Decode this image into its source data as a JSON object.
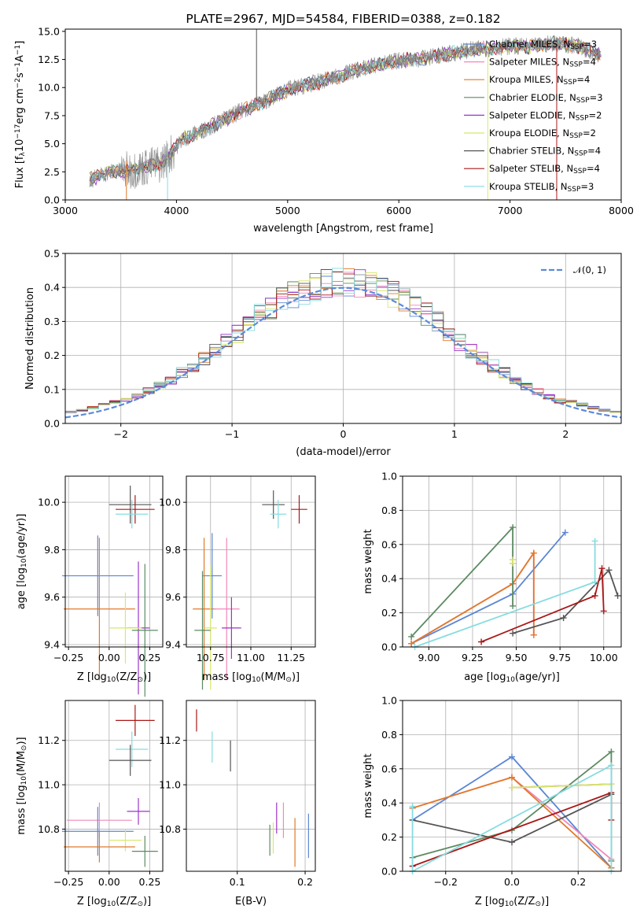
{
  "colors": {
    "chab_miles": "#5b86d4",
    "salp_miles": "#f088b8",
    "krou_miles": "#e07a2a",
    "chab_elodie": "#5c8a62",
    "salp_elodie": "#9b35c9",
    "krou_elodie": "#d8e86a",
    "chab_stelib": "#555555",
    "salp_stelib": "#aa1818",
    "krou_stelib": "#86dce0",
    "data": "#888888",
    "gauss": "#5b8ad8"
  },
  "legend": [
    {
      "key": "chab_miles",
      "label": "Chabrier MILES, N",
      "sub": "SSP",
      "eq": "=3"
    },
    {
      "key": "salp_miles",
      "label": "Salpeter MILES, N",
      "sub": "SSP",
      "eq": "=4"
    },
    {
      "key": "krou_miles",
      "label": "Kroupa MILES, N",
      "sub": "SSP",
      "eq": "=4"
    },
    {
      "key": "chab_elodie",
      "label": "Chabrier ELODIE, N",
      "sub": "SSP",
      "eq": "=3"
    },
    {
      "key": "salp_elodie",
      "label": "Salpeter ELODIE, N",
      "sub": "SSP",
      "eq": "=2"
    },
    {
      "key": "krou_elodie",
      "label": "Kroupa ELODIE, N",
      "sub": "SSP",
      "eq": "=2"
    },
    {
      "key": "chab_stelib",
      "label": "Chabrier STELIB, N",
      "sub": "SSP",
      "eq": "=4"
    },
    {
      "key": "salp_stelib",
      "label": "Salpeter STELIB, N",
      "sub": "SSP",
      "eq": "=4"
    },
    {
      "key": "krou_stelib",
      "label": "Kroupa STELIB, N",
      "sub": "SSP",
      "eq": "=3"
    }
  ],
  "chart_data": [
    {
      "type": "line",
      "title": "PLATE=2967, MJD=54584, FIBERID=0388, z=0.182",
      "xlabel": "wavelength [Angstrom, rest frame]",
      "ylabel_parts": [
        "Flux [f",
        "λ",
        "10",
        "−17",
        "erg cm",
        "−2",
        "s",
        "−1",
        "A",
        "−1",
        "]"
      ],
      "xlim": [
        3000,
        8000
      ],
      "ylim": [
        0,
        15.2
      ],
      "xticks": [
        3000,
        4000,
        5000,
        6000,
        7000,
        8000
      ],
      "yticks": [
        0.0,
        2.5,
        5.0,
        7.5,
        10.0,
        12.5,
        15.0
      ],
      "continuum": [
        [
          3220,
          1.8
        ],
        [
          3400,
          2.5
        ],
        [
          3560,
          2.6
        ],
        [
          3700,
          2.9
        ],
        [
          3850,
          3.2
        ],
        [
          3950,
          4.1
        ],
        [
          4050,
          5.4
        ],
        [
          4200,
          6.0
        ],
        [
          4400,
          7.0
        ],
        [
          4600,
          8.0
        ],
        [
          4800,
          8.8
        ],
        [
          5000,
          9.8
        ],
        [
          5200,
          10.3
        ],
        [
          5400,
          10.8
        ],
        [
          5600,
          11.5
        ],
        [
          5800,
          12.0
        ],
        [
          6000,
          12.4
        ],
        [
          6200,
          12.6
        ],
        [
          6400,
          12.9
        ],
        [
          6600,
          13.3
        ],
        [
          6800,
          13.5
        ],
        [
          7000,
          13.7
        ],
        [
          7200,
          13.6
        ],
        [
          7400,
          14.0
        ],
        [
          7600,
          13.7
        ],
        [
          7800,
          13.0
        ]
      ]
    },
    {
      "type": "bar",
      "xlabel": "(data-model)/error",
      "ylabel": "Normed distribution",
      "xlim": [
        -2.5,
        2.5
      ],
      "ylim": [
        0,
        0.5
      ],
      "xticks": [
        -2,
        -1,
        0,
        1,
        2
      ],
      "yticks": [
        0.0,
        0.1,
        0.2,
        0.3,
        0.4,
        0.5
      ],
      "gauss_label": "𝒩(0, 1)",
      "bin_width": 0.1
    },
    {
      "type": "scatter",
      "xlabel_parts": [
        "Z [log",
        "10",
        "(Z/Z",
        "⊙",
        ")]"
      ],
      "ylabel_parts": [
        "age  [log",
        "10",
        "(age/yr)]"
      ],
      "xlim": [
        -0.27,
        0.33
      ],
      "ylim": [
        9.39,
        10.11
      ],
      "xticks": [
        -0.25,
        0.0,
        0.25
      ],
      "xtick_labels": [
        "−0.25",
        "0.00",
        "0.25"
      ],
      "yticks": [
        9.4,
        9.6,
        9.8,
        10.0
      ],
      "points": [
        {
          "c": "chab_stelib",
          "x": 0.13,
          "y": 9.99,
          "ex": 0.13,
          "ey": 0.08
        },
        {
          "c": "salp_stelib",
          "x": 0.16,
          "y": 9.97,
          "ex": 0.12,
          "ey": 0.06
        },
        {
          "c": "krou_stelib",
          "x": 0.14,
          "y": 9.95,
          "ex": 0.1,
          "ey": 0.06
        },
        {
          "c": "chab_miles",
          "x": -0.07,
          "y": 9.69,
          "ex": 0.22,
          "ey": 0.17
        },
        {
          "c": "krou_miles",
          "x": -0.06,
          "y": 9.55,
          "ex": 0.22,
          "ey": 0.3
        },
        {
          "c": "salp_elodie",
          "x": 0.18,
          "y": 9.47,
          "ex": 0.07,
          "ey": 0.28
        },
        {
          "c": "krou_elodie",
          "x": 0.1,
          "y": 9.47,
          "ex": 0.1,
          "ey": 0.15
        },
        {
          "c": "chab_elodie",
          "x": 0.22,
          "y": 9.46,
          "ex": 0.08,
          "ey": 0.28
        }
      ]
    },
    {
      "type": "scatter",
      "xlabel_parts": [
        "mass [log",
        "10",
        "(M/M",
        "⊙",
        ")]"
      ],
      "xlim": [
        10.6,
        11.4
      ],
      "ylim": [
        9.39,
        10.11
      ],
      "xticks": [
        10.75,
        11.0,
        11.25
      ],
      "xtick_labels": [
        "10.75",
        "11.00",
        "11.25"
      ],
      "yticks": [
        9.4,
        9.6,
        9.8,
        10.0
      ],
      "points": [
        {
          "c": "chab_stelib",
          "x": 11.14,
          "y": 9.99,
          "ex": 0.07,
          "ey": 0.06
        },
        {
          "c": "salp_stelib",
          "x": 11.3,
          "y": 9.97,
          "ex": 0.05,
          "ey": 0.06
        },
        {
          "c": "krou_stelib",
          "x": 11.17,
          "y": 9.95,
          "ex": 0.05,
          "ey": 0.06
        },
        {
          "c": "chab_miles",
          "x": 10.76,
          "y": 9.69,
          "ex": 0.06,
          "ey": 0.18
        },
        {
          "c": "krou_miles",
          "x": 10.71,
          "y": 9.55,
          "ex": 0.07,
          "ey": 0.3
        },
        {
          "c": "salp_miles",
          "x": 10.85,
          "y": 9.55,
          "ex": 0.08,
          "ey": 0.3
        },
        {
          "c": "salp_elodie",
          "x": 10.88,
          "y": 9.47,
          "ex": 0.06,
          "ey": 0.13
        },
        {
          "c": "krou_elodie",
          "x": 10.75,
          "y": 9.47,
          "ex": 0.04,
          "ey": 0.26
        },
        {
          "c": "chab_elodie",
          "x": 10.7,
          "y": 9.46,
          "ex": 0.05,
          "ey": 0.25
        }
      ]
    },
    {
      "type": "line",
      "xlabel_parts": [
        "age  [log",
        "10",
        "(age/yr)]"
      ],
      "ylabel": "mass weight",
      "xlim": [
        8.85,
        10.1
      ],
      "ylim": [
        0,
        1
      ],
      "xticks": [
        9.0,
        9.25,
        9.5,
        9.75,
        10.0
      ],
      "xtick_labels": [
        "9.00",
        "9.25",
        "9.50",
        "9.75",
        "10.00"
      ],
      "yticks": [
        0.0,
        0.2,
        0.4,
        0.6,
        0.8,
        1.0
      ],
      "series": [
        {
          "c": "chab_miles",
          "pts": [
            [
              8.9,
              0.02
            ],
            [
              9.48,
              0.31
            ],
            [
              9.78,
              0.67
            ]
          ]
        },
        {
          "c": "salp_miles",
          "pts": [
            [
              8.9,
              0.02
            ],
            [
              9.48,
              0.37
            ],
            [
              9.6,
              0.55
            ],
            [
              9.6,
              0.07
            ]
          ]
        },
        {
          "c": "krou_miles",
          "pts": [
            [
              8.9,
              0.02
            ],
            [
              9.48,
              0.37
            ],
            [
              9.6,
              0.55
            ],
            [
              9.6,
              0.07
            ]
          ]
        },
        {
          "c": "chab_elodie",
          "pts": [
            [
              8.9,
              0.06
            ],
            [
              9.48,
              0.7
            ],
            [
              9.48,
              0.24
            ]
          ]
        },
        {
          "c": "salp_elodie",
          "pts": [
            [
              9.48,
              0.51
            ],
            [
              9.48,
              0.49
            ]
          ]
        },
        {
          "c": "krou_elodie",
          "pts": [
            [
              9.48,
              0.51
            ],
            [
              9.48,
              0.49
            ]
          ]
        },
        {
          "c": "chab_stelib",
          "pts": [
            [
              9.48,
              0.08
            ],
            [
              9.77,
              0.17
            ],
            [
              10.03,
              0.45
            ],
            [
              10.08,
              0.3
            ]
          ]
        },
        {
          "c": "salp_stelib",
          "pts": [
            [
              9.3,
              0.03
            ],
            [
              9.95,
              0.3
            ],
            [
              9.99,
              0.46
            ],
            [
              10.0,
              0.21
            ]
          ]
        },
        {
          "c": "krou_stelib",
          "pts": [
            [
              8.92,
              0.0
            ],
            [
              9.95,
              0.38
            ],
            [
              9.95,
              0.62
            ]
          ]
        }
      ]
    },
    {
      "type": "scatter",
      "xlabel_parts": [
        "Z [log",
        "10",
        "(Z/Z",
        "⊙",
        ")]"
      ],
      "ylabel_parts": [
        "mass [log",
        "10",
        "(M/M",
        "⊙",
        ")]"
      ],
      "xlim": [
        -0.27,
        0.33
      ],
      "ylim": [
        10.61,
        11.38
      ],
      "xticks": [
        -0.25,
        0.0,
        0.25
      ],
      "xtick_labels": [
        "−0.25",
        "0.00",
        "0.25"
      ],
      "yticks": [
        10.8,
        11.0,
        11.2
      ],
      "points": [
        {
          "c": "salp_stelib",
          "x": 0.16,
          "y": 11.29,
          "ex": 0.12,
          "ey": 0.07
        },
        {
          "c": "krou_stelib",
          "x": 0.14,
          "y": 11.16,
          "ex": 0.1,
          "ey": 0.08
        },
        {
          "c": "chab_stelib",
          "x": 0.13,
          "y": 11.11,
          "ex": 0.13,
          "ey": 0.07
        },
        {
          "c": "salp_elodie",
          "x": 0.18,
          "y": 10.88,
          "ex": 0.07,
          "ey": 0.06
        },
        {
          "c": "salp_miles",
          "x": -0.06,
          "y": 10.84,
          "ex": 0.2,
          "ey": 0.08
        },
        {
          "c": "chab_miles",
          "x": -0.07,
          "y": 10.79,
          "ex": 0.22,
          "ey": 0.11
        },
        {
          "c": "krou_elodie",
          "x": 0.1,
          "y": 10.75,
          "ex": 0.1,
          "ey": 0.05
        },
        {
          "c": "krou_miles",
          "x": -0.06,
          "y": 10.72,
          "ex": 0.22,
          "ey": 0.07
        },
        {
          "c": "chab_elodie",
          "x": 0.22,
          "y": 10.7,
          "ex": 0.08,
          "ey": 0.07
        }
      ]
    },
    {
      "type": "scatter",
      "xlabel": "E(B-V)",
      "xlim": [
        0.025,
        0.215
      ],
      "ylim": [
        10.61,
        11.38
      ],
      "xticks": [
        0.1,
        0.2
      ],
      "xtick_labels": [
        "0.1",
        "0.2"
      ],
      "yticks": [
        10.8,
        11.0,
        11.2
      ],
      "points": [
        {
          "c": "salp_stelib",
          "x": 0.04,
          "y": 11.29,
          "ex": 0,
          "ey": 0.05
        },
        {
          "c": "krou_stelib",
          "x": 0.063,
          "y": 11.17,
          "ex": 0,
          "ey": 0.07
        },
        {
          "c": "chab_stelib",
          "x": 0.09,
          "y": 11.13,
          "ex": 0,
          "ey": 0.07
        },
        {
          "c": "salp_elodie",
          "x": 0.158,
          "y": 10.85,
          "ex": 0,
          "ey": 0.07
        },
        {
          "c": "salp_miles",
          "x": 0.168,
          "y": 10.84,
          "ex": 0,
          "ey": 0.08
        },
        {
          "c": "chab_elodie",
          "x": 0.148,
          "y": 10.75,
          "ex": 0,
          "ey": 0.07
        },
        {
          "c": "krou_elodie",
          "x": 0.153,
          "y": 10.76,
          "ex": 0,
          "ey": 0.07
        },
        {
          "c": "krou_miles",
          "x": 0.185,
          "y": 10.74,
          "ex": 0,
          "ey": 0.11
        },
        {
          "c": "chab_miles",
          "x": 0.205,
          "y": 10.77,
          "ex": 0,
          "ey": 0.1
        }
      ]
    },
    {
      "type": "line",
      "xlabel_parts": [
        "Z [log",
        "10",
        "(Z/Z",
        "⊙",
        ")]"
      ],
      "ylabel": "mass weight",
      "xlim": [
        -0.33,
        0.33
      ],
      "ylim": [
        0,
        1
      ],
      "xticks": [
        -0.2,
        0.0,
        0.2
      ],
      "xtick_labels": [
        "−0.2",
        "0.0",
        "0.2"
      ],
      "yticks": [
        0.0,
        0.2,
        0.4,
        0.6,
        0.8,
        1.0
      ],
      "series": [
        {
          "c": "chab_miles",
          "pts": [
            [
              -0.3,
              0.3
            ],
            [
              0.0,
              0.67
            ],
            [
              0.3,
              0.02
            ]
          ]
        },
        {
          "c": "salp_miles",
          "pts": [
            [
              -0.3,
              0.37
            ],
            [
              0.0,
              0.55
            ],
            [
              0.3,
              0.07
            ]
          ]
        },
        {
          "c": "krou_miles",
          "pts": [
            [
              -0.3,
              0.37
            ],
            [
              0.0,
              0.55
            ],
            [
              0.3,
              0.02
            ]
          ]
        },
        {
          "c": "chab_elodie",
          "pts": [
            [
              -0.3,
              0.08
            ],
            [
              0.0,
              0.24
            ],
            [
              0.3,
              0.7
            ],
            [
              0.3,
              0.06
            ]
          ]
        },
        {
          "c": "salp_elodie",
          "pts": [
            [
              0.0,
              0.49
            ],
            [
              0.3,
              0.51
            ]
          ]
        },
        {
          "c": "krou_elodie",
          "pts": [
            [
              0.0,
              0.49
            ],
            [
              0.3,
              0.51
            ]
          ]
        },
        {
          "c": "chab_stelib",
          "pts": [
            [
              -0.3,
              0.3
            ],
            [
              0.0,
              0.17
            ],
            [
              0.3,
              0.45
            ]
          ]
        },
        {
          "c": "salp_stelib",
          "pts": [
            [
              -0.3,
              0.03
            ],
            [
              0.3,
              0.46
            ],
            [
              0.3,
              0.3
            ]
          ]
        },
        {
          "c": "krou_stelib",
          "pts": [
            [
              -0.3,
              0.38
            ],
            [
              -0.3,
              0.0
            ],
            [
              0.3,
              0.62
            ],
            [
              0.3,
              0.0
            ]
          ]
        }
      ]
    }
  ]
}
